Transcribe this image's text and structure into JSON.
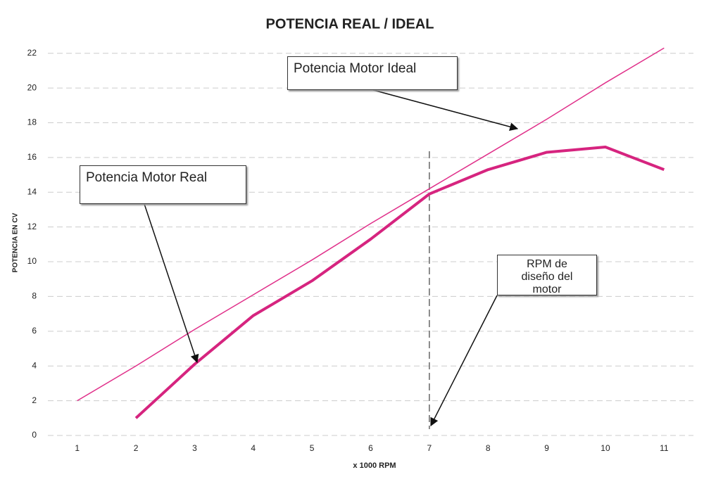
{
  "chart_data": {
    "type": "line",
    "title": "POTENCIA REAL / IDEAL",
    "x_label": "x 1000 RPM",
    "y_label": "POTENCIA EN CV",
    "x": [
      1,
      2,
      3,
      4,
      5,
      6,
      7,
      8,
      9,
      10,
      11
    ],
    "series": [
      {
        "name": "Potencia Motor Ideal",
        "color": "#e0308a",
        "values": [
          2.0,
          4.0,
          6.1,
          8.1,
          10.1,
          12.2,
          14.2,
          16.2,
          18.2,
          20.3,
          22.3
        ]
      },
      {
        "name": "Potencia Motor Real",
        "color": "#d6247f",
        "values": [
          null,
          1.0,
          4.1,
          6.9,
          8.9,
          11.3,
          13.9,
          15.3,
          16.3,
          16.6,
          15.3
        ]
      }
    ],
    "annotations": [
      "RPM de diseño del motor"
    ],
    "xlim": [
      0.5,
      11.5
    ],
    "xticks": [
      1,
      2,
      3,
      4,
      5,
      6,
      7,
      8,
      9,
      10,
      11
    ],
    "ylim": [
      0,
      23
    ],
    "yticks": [
      0,
      2,
      4,
      6,
      8,
      10,
      12,
      14,
      16,
      18,
      20,
      22
    ],
    "grid": true
  }
}
